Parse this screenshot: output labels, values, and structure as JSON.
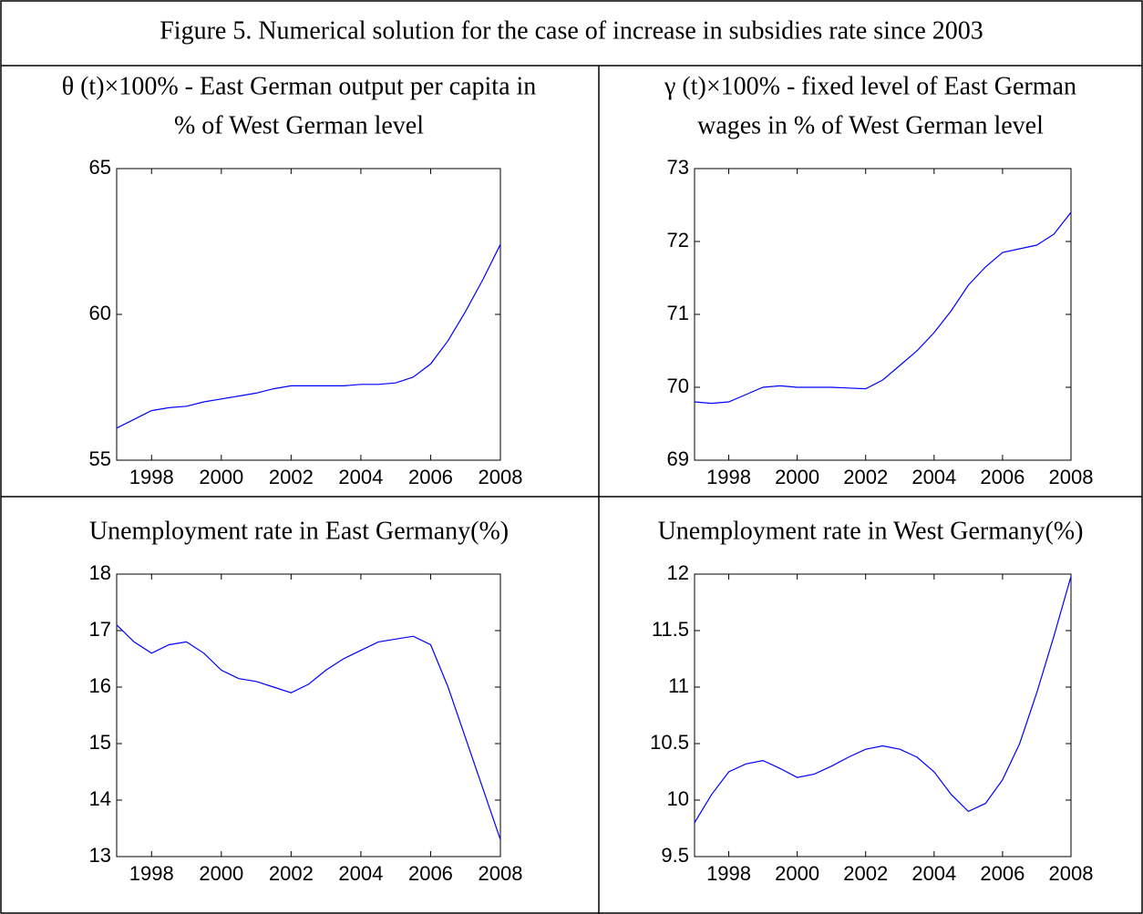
{
  "figure_title": "Figure 5. Numerical solution for the case of increase in subsidies rate since 2003",
  "chart_data": [
    {
      "type": "line",
      "title": [
        "θ (t)×100% - East German output per capita in",
        "% of West German level"
      ],
      "x": [
        1997,
        1997.5,
        1998,
        1998.5,
        1999,
        1999.5,
        2000,
        2000.5,
        2001,
        2001.5,
        2002,
        2002.5,
        2003,
        2003.5,
        2004,
        2004.5,
        2005,
        2005.5,
        2006,
        2006.5,
        2007,
        2007.5,
        2008
      ],
      "series": [
        {
          "color": "#0000ff",
          "values": [
            56.1,
            56.4,
            56.7,
            56.8,
            56.85,
            57.0,
            57.1,
            57.2,
            57.3,
            57.45,
            57.55,
            57.55,
            57.55,
            57.55,
            57.6,
            57.6,
            57.65,
            57.85,
            58.3,
            59.1,
            60.1,
            61.2,
            62.4
          ]
        }
      ],
      "xlim": [
        1997,
        2008
      ],
      "xticks": [
        1998,
        2000,
        2002,
        2004,
        2006,
        2008
      ],
      "ylim": [
        55,
        65
      ],
      "yticks": [
        55,
        60,
        65
      ],
      "grid": false
    },
    {
      "type": "line",
      "title": [
        "γ (t)×100% - fixed level of East German",
        "wages in % of West German level"
      ],
      "x": [
        1997,
        1997.5,
        1998,
        1998.5,
        1999,
        1999.5,
        2000,
        2000.5,
        2001,
        2001.5,
        2002,
        2002.5,
        2003,
        2003.5,
        2004,
        2004.5,
        2005,
        2005.5,
        2006,
        2006.5,
        2007,
        2007.5,
        2008
      ],
      "series": [
        {
          "color": "#0000ff",
          "values": [
            69.8,
            69.78,
            69.8,
            69.9,
            70.0,
            70.02,
            70.0,
            70.0,
            70.0,
            69.99,
            69.98,
            70.1,
            70.3,
            70.5,
            70.75,
            71.05,
            71.4,
            71.65,
            71.85,
            71.9,
            71.95,
            72.1,
            72.4
          ]
        }
      ],
      "xlim": [
        1997,
        2008
      ],
      "xticks": [
        1998,
        2000,
        2002,
        2004,
        2006,
        2008
      ],
      "ylim": [
        69,
        73
      ],
      "yticks": [
        69,
        70,
        71,
        72,
        73
      ],
      "grid": false
    },
    {
      "type": "line",
      "title": [
        "Unemployment rate in East Germany(%)"
      ],
      "x": [
        1997,
        1997.5,
        1998,
        1998.5,
        1999,
        1999.5,
        2000,
        2000.5,
        2001,
        2001.5,
        2002,
        2002.5,
        2003,
        2003.5,
        2004,
        2004.5,
        2005,
        2005.5,
        2006,
        2006.5,
        2007,
        2007.5,
        2008
      ],
      "series": [
        {
          "color": "#0000ff",
          "values": [
            17.1,
            16.8,
            16.6,
            16.75,
            16.8,
            16.6,
            16.3,
            16.15,
            16.1,
            16.0,
            15.9,
            16.05,
            16.3,
            16.5,
            16.65,
            16.8,
            16.85,
            16.9,
            16.75,
            16.0,
            15.1,
            14.2,
            13.3
          ]
        }
      ],
      "xlim": [
        1997,
        2008
      ],
      "xticks": [
        1998,
        2000,
        2002,
        2004,
        2006,
        2008
      ],
      "ylim": [
        13,
        18
      ],
      "yticks": [
        13,
        14,
        15,
        16,
        17,
        18
      ],
      "grid": false
    },
    {
      "type": "line",
      "title": [
        "Unemployment rate in West Germany(%)"
      ],
      "x": [
        1997,
        1997.5,
        1998,
        1998.5,
        1999,
        1999.5,
        2000,
        2000.5,
        2001,
        2001.5,
        2002,
        2002.5,
        2003,
        2003.5,
        2004,
        2004.5,
        2005,
        2005.5,
        2006,
        2006.5,
        2007,
        2007.5,
        2008
      ],
      "series": [
        {
          "color": "#0000ff",
          "values": [
            9.8,
            10.05,
            10.25,
            10.32,
            10.35,
            10.28,
            10.2,
            10.23,
            10.3,
            10.38,
            10.45,
            10.48,
            10.45,
            10.38,
            10.25,
            10.05,
            9.9,
            9.97,
            10.18,
            10.5,
            10.95,
            11.45,
            11.98
          ]
        }
      ],
      "xlim": [
        1997,
        2008
      ],
      "xticks": [
        1998,
        2000,
        2002,
        2004,
        2006,
        2008
      ],
      "ylim": [
        9.5,
        12
      ],
      "yticks": [
        9.5,
        10,
        10.5,
        11,
        11.5,
        12
      ],
      "grid": false
    }
  ]
}
